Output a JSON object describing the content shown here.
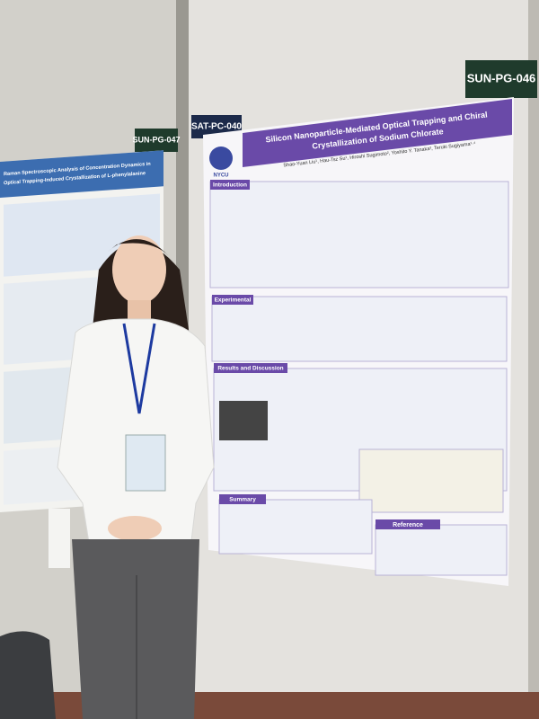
{
  "board_labels": {
    "left": "SUN-PG-047",
    "center": "SAT-PC-040",
    "right": "SUN-PG-046"
  },
  "main_poster": {
    "logo": "NYCU",
    "title_lines": [
      "Silicon Nanoparticle-Mediated Optical Trapping and Chiral",
      "Crystallization of Sodium Chlorate"
    ],
    "authors": "Shao-Yuan Liu¹, Hau-Tsz Su¹, Hiroshi Sugimoto², Yoshito Y. Tanaka³, Teruki Sugiyama¹·⁴",
    "sections": [
      "Introduction",
      "Experimental",
      "Results and Discussion",
      "Summary",
      "Reference"
    ]
  },
  "left_poster": {
    "title_lines": [
      "Raman Spectroscopic Analysis of Concentration Dynamics in",
      "Optical Trapping-Induced Crystallization of L-phenylalanine"
    ]
  }
}
